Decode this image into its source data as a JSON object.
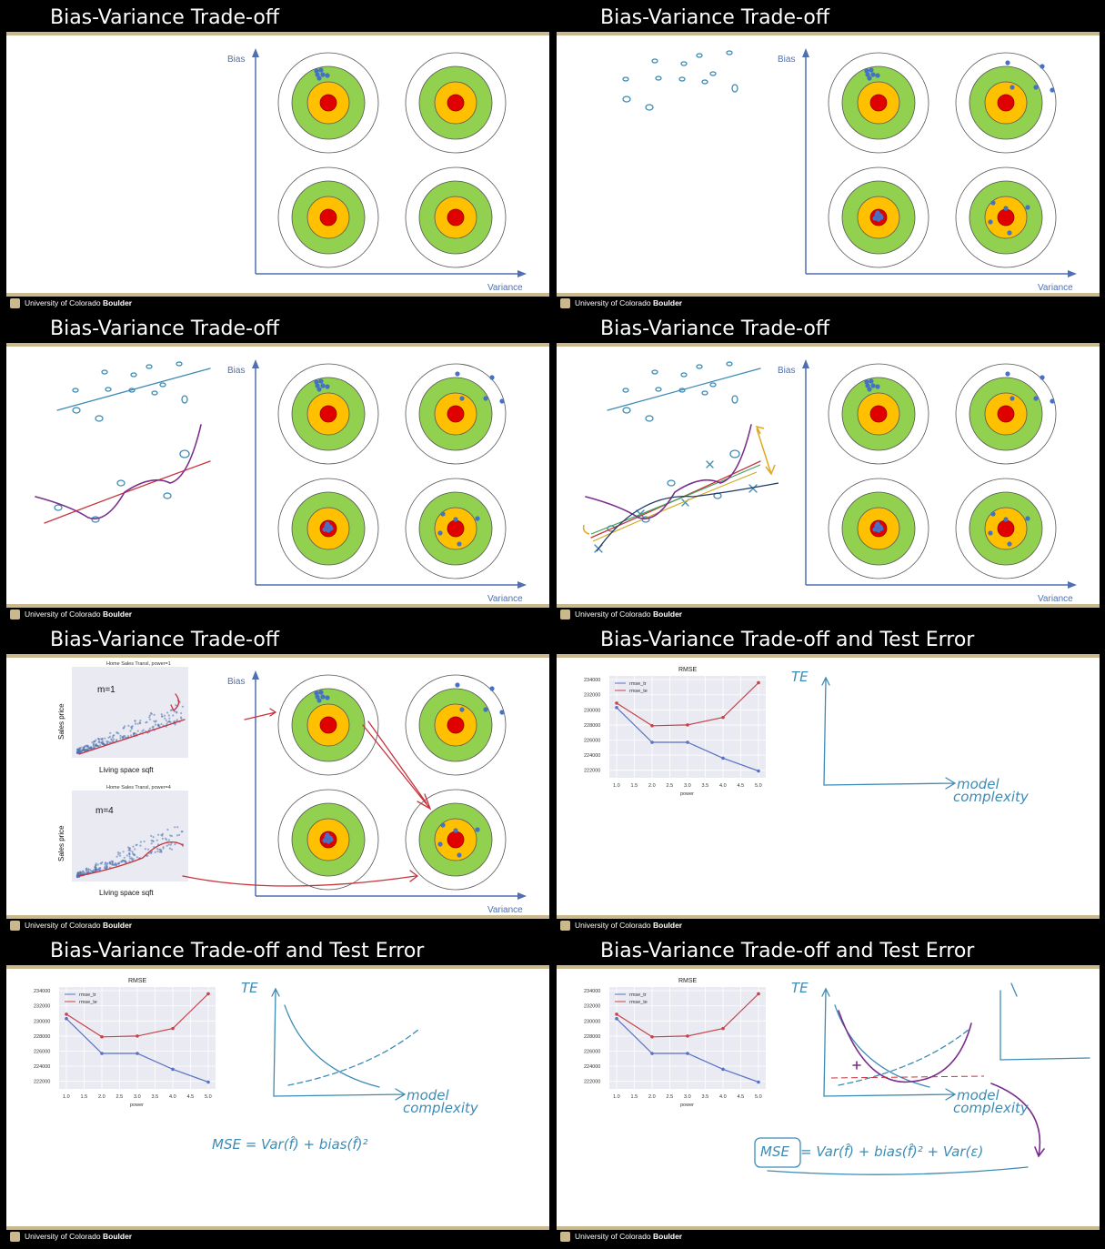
{
  "slides": [
    {
      "title": "Bias-Variance Trade-off",
      "footer": "University of Colorado",
      "footer_bold": "Boulder",
      "bias_label": "Bias",
      "variance_label": "Variance"
    },
    {
      "title": "Bias-Variance Trade-off",
      "footer": "University of Colorado",
      "footer_bold": "Boulder",
      "bias_label": "Bias",
      "variance_label": "Variance"
    },
    {
      "title": "Bias-Variance Trade-off",
      "footer": "University of Colorado",
      "footer_bold": "Boulder",
      "bias_label": "Bias",
      "variance_label": "Variance"
    },
    {
      "title": "Bias-Variance Trade-off",
      "footer": "University of Colorado",
      "footer_bold": "Boulder",
      "bias_label": "Bias",
      "variance_label": "Variance"
    },
    {
      "title": "Bias-Variance Trade-off",
      "footer": "University of Colorado",
      "footer_bold": "Boulder",
      "bias_label": "Bias",
      "variance_label": "Variance",
      "scatter_top": {
        "title": "Home Sales Transl, power=1",
        "label": "m=1",
        "ylabel": "Sales price",
        "xlabel": "Living space sqft"
      },
      "scatter_bottom": {
        "title": "Home Sales Transl, power=4",
        "label": "m=4",
        "ylabel": "Sales price",
        "xlabel": "Living space sqft"
      }
    },
    {
      "title": "Bias-Variance Trade-off and Test Error",
      "footer": "University of Colorado",
      "footer_bold": "Boulder",
      "annot": {
        "te": "TE",
        "model": "model",
        "complexity": "complexity"
      }
    },
    {
      "title": "Bias-Variance Trade-off and Test Error",
      "footer": "University of Colorado",
      "footer_bold": "Boulder",
      "annot": {
        "te": "TE",
        "model": "model",
        "complexity": "complexity",
        "equation": "MSE = Var(f̂) + bias(f̂)²"
      }
    },
    {
      "title": "Bias-Variance Trade-off and Test Error",
      "footer": "University of Colorado",
      "footer_bold": "Boulder",
      "annot": {
        "te": "TE",
        "model": "model",
        "complexity": "complexity",
        "equation_mse": "MSE",
        "equation_rest": "= Var(f̂) + bias(f̂)² + Var(ε)"
      }
    }
  ],
  "chart_data": {
    "type": "line",
    "title": "RMSE",
    "xlabel": "power",
    "x": [
      1.0,
      2.0,
      3.0,
      4.0,
      5.0
    ],
    "xticks": [
      "1.0",
      "1.5",
      "2.0",
      "2.5",
      "3.0",
      "3.5",
      "4.0",
      "4.5",
      "5.0"
    ],
    "yticks": [
      "234000",
      "232000",
      "230000",
      "228000",
      "226000",
      "224000",
      "222000"
    ],
    "ylim": [
      221000,
      234500
    ],
    "series": [
      {
        "name": "rmse_tr",
        "color": "#5a72c2",
        "values": [
          230300,
          225700,
          225700,
          223600,
          221900
        ]
      },
      {
        "name": "rmse_te",
        "color": "#c9424a",
        "values": [
          230900,
          227900,
          228000,
          229000,
          233600
        ]
      }
    ],
    "legend": "top-left"
  },
  "colors": {
    "ring_outer": "#ffffff",
    "ring_green": "#92d050",
    "ring_orange": "#ffc000",
    "ring_red": "#e00000",
    "dot": "#4472c4",
    "gold": "#c9b98d"
  }
}
